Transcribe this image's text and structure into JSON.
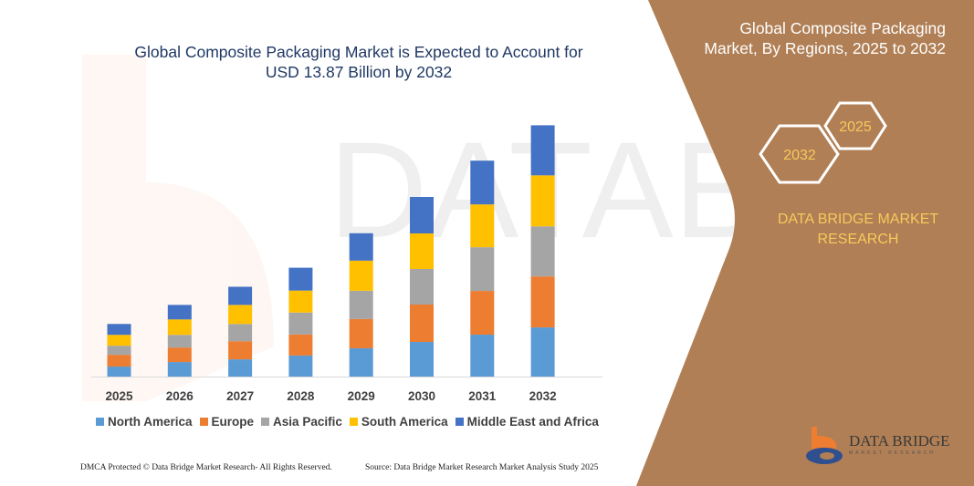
{
  "header": {
    "title_line1": "Global Composite Packaging Market is Expected to Account for",
    "title_line2": "USD 13.87 Billion by 2032"
  },
  "side_panel": {
    "title_line1": "Global Composite Packaging",
    "title_line2": "Market, By Regions, 2025 to 2032",
    "hex_start_year": "2025",
    "hex_end_year": "2032",
    "brand_line1": "DATA BRIDGE MARKET",
    "brand_line2": "RESEARCH",
    "logo_text": "DATA BRIDGE",
    "logo_subtext": "MARKET RESEARCH",
    "panel_color": "#b07f55"
  },
  "footer": {
    "left": "DMCA Protected © Data Bridge Market Research-  All Rights Reserved.",
    "right": "Source: Data Bridge Market Research  Market Analysis Study 2025"
  },
  "chart_data": {
    "type": "bar",
    "stacked": true,
    "title": "Global Composite Packaging Market is Expected to Account for USD 13.87 Billion by 2032",
    "xlabel": "",
    "ylabel": "",
    "grid": false,
    "y_axis_shown": false,
    "legend_position": "bottom",
    "categories": [
      "2025",
      "2026",
      "2027",
      "2028",
      "2029",
      "2030",
      "2031",
      "2032"
    ],
    "series": [
      {
        "name": "North America",
        "color": "#5b9bd5",
        "values": [
          0.55,
          0.8,
          0.95,
          1.16,
          1.56,
          1.91,
          2.31,
          2.71
        ]
      },
      {
        "name": "Europe",
        "color": "#ed7d31",
        "values": [
          0.65,
          0.8,
          1.0,
          1.16,
          1.61,
          2.06,
          2.41,
          2.81
        ]
      },
      {
        "name": "Asia Pacific",
        "color": "#a5a5a5",
        "values": [
          0.5,
          0.7,
          0.95,
          1.21,
          1.56,
          1.96,
          2.41,
          2.76
        ]
      },
      {
        "name": "South America",
        "color": "#ffc000",
        "values": [
          0.6,
          0.85,
          1.05,
          1.21,
          1.66,
          1.96,
          2.36,
          2.81
        ]
      },
      {
        "name": "Middle East and Africa",
        "color": "#4472c4",
        "values": [
          0.6,
          0.8,
          1.0,
          1.26,
          1.51,
          2.01,
          2.41,
          2.76
        ]
      }
    ]
  }
}
